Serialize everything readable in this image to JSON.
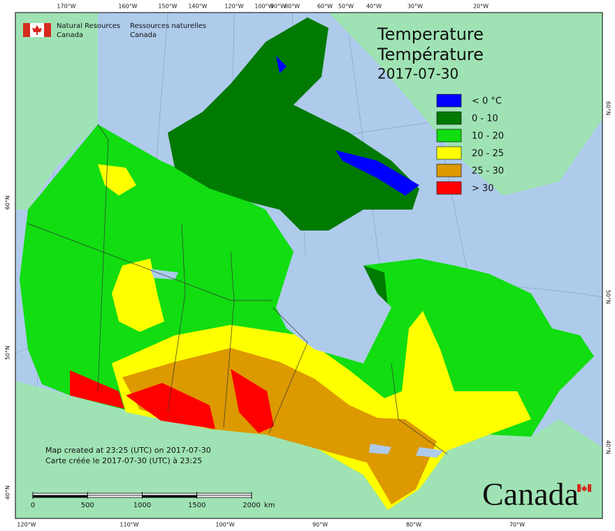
{
  "agency": {
    "en_line1": "Natural Resources",
    "en_line2": "Canada",
    "fr_line1": "Ressources naturelles",
    "fr_line2": "Canada"
  },
  "title": {
    "en": "Temperature",
    "fr": "Température",
    "date": "2017-07-30"
  },
  "legend": [
    {
      "label": "< 0 °C",
      "color": "#0000ff"
    },
    {
      "label": "0 - 10",
      "color": "#007a00"
    },
    {
      "label": "10 - 20",
      "color": "#11dd11"
    },
    {
      "label": "20 - 25",
      "color": "#ffff00"
    },
    {
      "label": "25 - 30",
      "color": "#dd9900"
    },
    {
      "label": "> 30",
      "color": "#ff0000"
    }
  ],
  "graticule": {
    "top": [
      "170°W",
      "160°W",
      "150°W",
      "140°W",
      "120°W",
      "100°W",
      "90°W",
      "80°W",
      "60°W",
      "50°W",
      "40°W",
      "30°W",
      "20°W"
    ],
    "bottom": [
      "120°W",
      "110°W",
      "100°W",
      "90°W",
      "80°W",
      "70°W"
    ],
    "left": [
      "60°N",
      "50°N",
      "40°N"
    ],
    "right": [
      "60°N",
      "50°N",
      "40°N"
    ]
  },
  "credits": [
    "Map created at 23:25 (UTC) on 2017-07-30",
    "Carte créée le 2017-07-30 (UTC) à 23:25"
  ],
  "scale": {
    "ticks": [
      0,
      500,
      1000,
      1500,
      2000
    ],
    "unit": "km"
  },
  "wordmark": "Canada"
}
